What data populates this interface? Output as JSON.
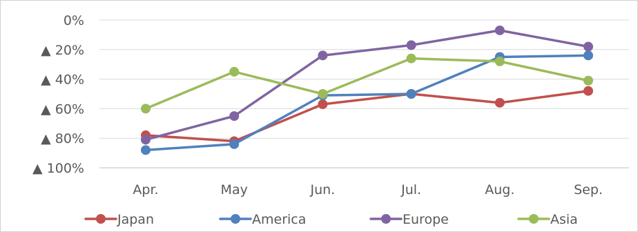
{
  "chart_data": {
    "type": "line",
    "title": "",
    "xlabel": "",
    "ylabel": "",
    "categories": [
      "Apr.",
      "May",
      "Jun.",
      "Jul.",
      "Aug.",
      "Sep."
    ],
    "y_ticks": [
      0,
      -20,
      -40,
      -60,
      -80,
      -100
    ],
    "y_tick_labels": [
      "0%",
      "▲ 20%",
      "▲ 40%",
      "▲ 60%",
      "▲ 80%",
      "▲ 100%"
    ],
    "ylim": [
      -100,
      0
    ],
    "grid": true,
    "legend_position": "bottom",
    "series": [
      {
        "name": "Japan",
        "color": "#c0504d",
        "values": [
          -78,
          -82,
          -57,
          -50,
          -56,
          -48
        ]
      },
      {
        "name": "America",
        "color": "#4f81bd",
        "values": [
          -88,
          -84,
          -51,
          -50,
          -25,
          -24
        ]
      },
      {
        "name": "Europe",
        "color": "#8064a2",
        "values": [
          -81,
          -65,
          -24,
          -17,
          -7,
          -18
        ]
      },
      {
        "name": "Asia",
        "color": "#9bbb59",
        "values": [
          -60,
          -35,
          -50,
          -26,
          -28,
          -41
        ]
      }
    ]
  }
}
